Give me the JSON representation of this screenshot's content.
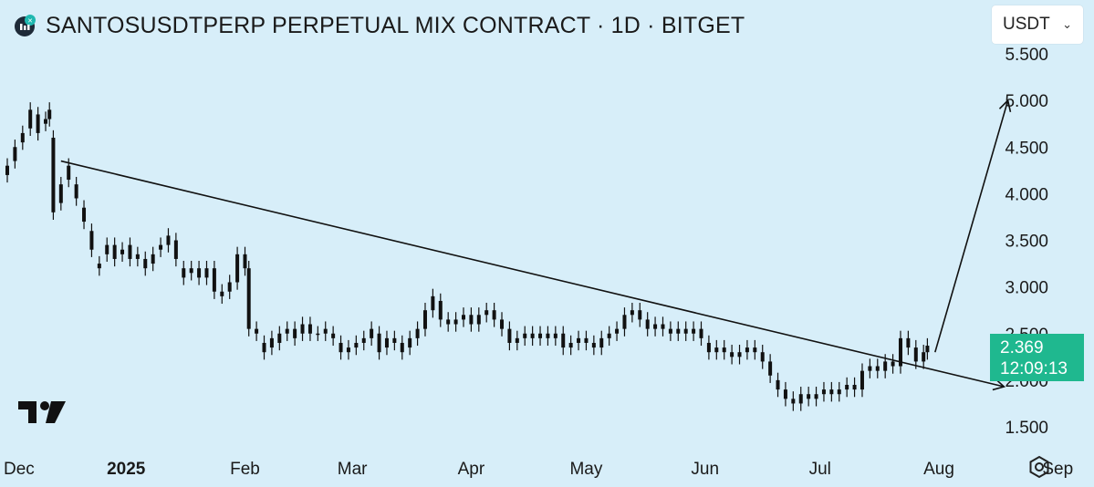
{
  "header": {
    "title": "SANTOSUSDTPERP PERPETUAL MIX CONTRACT · 1D · BITGET",
    "exchange_icon": "bitget-logo-icon"
  },
  "currency_selector": {
    "value": "USDT",
    "icon": "chevron-down-icon"
  },
  "price_label": {
    "price": "2.369",
    "countdown": "12:09:13",
    "color": "#1fb88f"
  },
  "colors": {
    "background": "#d7eef9",
    "candles": "#111111",
    "trendline": "#111111"
  },
  "chart_data": {
    "type": "candlestick",
    "y_axis": {
      "ticks": [
        "1.500",
        "2.000",
        "2.500",
        "3.000",
        "3.500",
        "4.000",
        "4.500",
        "5.000",
        "5.500"
      ],
      "values": [
        1.5,
        2.0,
        2.5,
        3.0,
        3.5,
        4.0,
        4.5,
        5.0,
        5.5
      ],
      "range": [
        1.25,
        5.75
      ]
    },
    "x_axis": {
      "tick_labels": [
        "Dec",
        "2025",
        "Feb",
        "Mar",
        "Apr",
        "May",
        "Jun",
        "Jul",
        "Aug",
        "Sep"
      ],
      "tick_dates": [
        "2024-12-01",
        "2025-01-01",
        "2025-02-01",
        "2025-03-01",
        "2025-04-01",
        "2025-05-01",
        "2025-06-01",
        "2025-07-01",
        "2025-08-01",
        "2025-09-01"
      ],
      "bold": [
        "2025"
      ],
      "range": [
        "2024-12-01",
        "2025-09-13"
      ]
    },
    "candles": [
      [
        "2024-12-01",
        4.3,
        4.2
      ],
      [
        "2024-12-03",
        4.35,
        4.5
      ],
      [
        "2024-12-05",
        4.55,
        4.65
      ],
      [
        "2024-12-07",
        4.7,
        4.9
      ],
      [
        "2024-12-09",
        4.85,
        4.65
      ],
      [
        "2024-12-11",
        4.75,
        4.8
      ],
      [
        "2024-12-12",
        4.8,
        4.9
      ],
      [
        "2024-12-13",
        4.6,
        3.8
      ],
      [
        "2024-12-15",
        3.9,
        4.1
      ],
      [
        "2024-12-17",
        4.15,
        4.3
      ],
      [
        "2024-12-19",
        4.1,
        3.95
      ],
      [
        "2024-12-21",
        3.85,
        3.7
      ],
      [
        "2024-12-23",
        3.6,
        3.4
      ],
      [
        "2024-12-25",
        3.25,
        3.2
      ],
      [
        "2024-12-27",
        3.35,
        3.45
      ],
      [
        "2024-12-29",
        3.45,
        3.3
      ],
      [
        "2024-12-31",
        3.35,
        3.4
      ],
      [
        "2025-01-02",
        3.45,
        3.3
      ],
      [
        "2025-01-04",
        3.3,
        3.35
      ],
      [
        "2025-01-06",
        3.3,
        3.2
      ],
      [
        "2025-01-08",
        3.25,
        3.35
      ],
      [
        "2025-01-10",
        3.4,
        3.45
      ],
      [
        "2025-01-12",
        3.45,
        3.55
      ],
      [
        "2025-01-14",
        3.5,
        3.3
      ],
      [
        "2025-01-16",
        3.2,
        3.1
      ],
      [
        "2025-01-18",
        3.15,
        3.2
      ],
      [
        "2025-01-20",
        3.2,
        3.1
      ],
      [
        "2025-01-22",
        3.1,
        3.2
      ],
      [
        "2025-01-24",
        3.2,
        2.95
      ],
      [
        "2025-01-26",
        2.9,
        2.95
      ],
      [
        "2025-01-28",
        2.95,
        3.05
      ],
      [
        "2025-01-30",
        3.05,
        3.35
      ],
      [
        "2025-02-01",
        3.35,
        3.2
      ],
      [
        "2025-02-02",
        3.2,
        2.55
      ],
      [
        "2025-02-04",
        2.55,
        2.5
      ],
      [
        "2025-02-06",
        2.4,
        2.3
      ],
      [
        "2025-02-08",
        2.35,
        2.45
      ],
      [
        "2025-02-10",
        2.4,
        2.5
      ],
      [
        "2025-02-12",
        2.5,
        2.55
      ],
      [
        "2025-02-14",
        2.55,
        2.45
      ],
      [
        "2025-02-16",
        2.5,
        2.6
      ],
      [
        "2025-02-18",
        2.6,
        2.5
      ],
      [
        "2025-02-20",
        2.5,
        2.5
      ],
      [
        "2025-02-22",
        2.55,
        2.5
      ],
      [
        "2025-02-24",
        2.5,
        2.45
      ],
      [
        "2025-02-26",
        2.4,
        2.3
      ],
      [
        "2025-02-28",
        2.3,
        2.35
      ],
      [
        "2025-03-02",
        2.35,
        2.4
      ],
      [
        "2025-03-04",
        2.4,
        2.45
      ],
      [
        "2025-03-06",
        2.45,
        2.55
      ],
      [
        "2025-03-08",
        2.5,
        2.3
      ],
      [
        "2025-03-10",
        2.35,
        2.45
      ],
      [
        "2025-03-12",
        2.45,
        2.4
      ],
      [
        "2025-03-14",
        2.4,
        2.3
      ],
      [
        "2025-03-16",
        2.35,
        2.45
      ],
      [
        "2025-03-18",
        2.45,
        2.55
      ],
      [
        "2025-03-20",
        2.55,
        2.75
      ],
      [
        "2025-03-22",
        2.75,
        2.9
      ],
      [
        "2025-03-24",
        2.85,
        2.65
      ],
      [
        "2025-03-26",
        2.65,
        2.6
      ],
      [
        "2025-03-28",
        2.6,
        2.65
      ],
      [
        "2025-03-30",
        2.65,
        2.7
      ],
      [
        "2025-04-01",
        2.7,
        2.6
      ],
      [
        "2025-04-03",
        2.6,
        2.7
      ],
      [
        "2025-04-05",
        2.7,
        2.75
      ],
      [
        "2025-04-07",
        2.75,
        2.65
      ],
      [
        "2025-04-09",
        2.65,
        2.55
      ],
      [
        "2025-04-11",
        2.55,
        2.4
      ],
      [
        "2025-04-13",
        2.4,
        2.45
      ],
      [
        "2025-04-15",
        2.45,
        2.5
      ],
      [
        "2025-04-17",
        2.5,
        2.45
      ],
      [
        "2025-04-19",
        2.45,
        2.5
      ],
      [
        "2025-04-21",
        2.5,
        2.45
      ],
      [
        "2025-04-23",
        2.45,
        2.5
      ],
      [
        "2025-04-25",
        2.5,
        2.35
      ],
      [
        "2025-04-27",
        2.35,
        2.4
      ],
      [
        "2025-04-29",
        2.4,
        2.45
      ],
      [
        "2025-05-01",
        2.45,
        2.4
      ],
      [
        "2025-05-03",
        2.4,
        2.35
      ],
      [
        "2025-05-05",
        2.35,
        2.45
      ],
      [
        "2025-05-07",
        2.45,
        2.5
      ],
      [
        "2025-05-09",
        2.5,
        2.55
      ],
      [
        "2025-05-11",
        2.55,
        2.7
      ],
      [
        "2025-05-13",
        2.7,
        2.75
      ],
      [
        "2025-05-15",
        2.75,
        2.65
      ],
      [
        "2025-05-17",
        2.65,
        2.55
      ],
      [
        "2025-05-19",
        2.55,
        2.6
      ],
      [
        "2025-05-21",
        2.6,
        2.55
      ],
      [
        "2025-05-23",
        2.55,
        2.5
      ],
      [
        "2025-05-25",
        2.5,
        2.55
      ],
      [
        "2025-05-27",
        2.55,
        2.5
      ],
      [
        "2025-05-29",
        2.5,
        2.55
      ],
      [
        "2025-05-31",
        2.55,
        2.45
      ],
      [
        "2025-06-02",
        2.4,
        2.3
      ],
      [
        "2025-06-04",
        2.3,
        2.35
      ],
      [
        "2025-06-06",
        2.35,
        2.3
      ],
      [
        "2025-06-08",
        2.3,
        2.25
      ],
      [
        "2025-06-10",
        2.25,
        2.3
      ],
      [
        "2025-06-12",
        2.3,
        2.35
      ],
      [
        "2025-06-14",
        2.35,
        2.3
      ],
      [
        "2025-06-16",
        2.3,
        2.2
      ],
      [
        "2025-06-18",
        2.2,
        2.05
      ],
      [
        "2025-06-20",
        2.0,
        1.9
      ],
      [
        "2025-06-22",
        1.9,
        1.8
      ],
      [
        "2025-06-24",
        1.8,
        1.75
      ],
      [
        "2025-06-26",
        1.75,
        1.85
      ],
      [
        "2025-06-28",
        1.85,
        1.8
      ],
      [
        "2025-06-30",
        1.8,
        1.85
      ],
      [
        "2025-07-02",
        1.85,
        1.9
      ],
      [
        "2025-07-04",
        1.9,
        1.85
      ],
      [
        "2025-07-06",
        1.85,
        1.9
      ],
      [
        "2025-07-08",
        1.9,
        1.95
      ],
      [
        "2025-07-10",
        1.95,
        1.9
      ],
      [
        "2025-07-12",
        1.9,
        2.1
      ],
      [
        "2025-07-14",
        2.1,
        2.15
      ],
      [
        "2025-07-16",
        2.15,
        2.1
      ],
      [
        "2025-07-18",
        2.1,
        2.2
      ],
      [
        "2025-07-20",
        2.2,
        2.15
      ],
      [
        "2025-07-22",
        2.15,
        2.45
      ],
      [
        "2025-07-24",
        2.45,
        2.35
      ],
      [
        "2025-07-26",
        2.35,
        2.2
      ],
      [
        "2025-07-28",
        2.2,
        2.3
      ],
      [
        "2025-07-29",
        2.3,
        2.37
      ]
    ],
    "trendline": {
      "start": [
        "2024-12-15",
        4.35
      ],
      "end": [
        "2025-08-18",
        1.93
      ],
      "arrow": "end"
    },
    "projection": {
      "start": [
        "2025-07-31",
        2.3
      ],
      "end": [
        "2025-08-19",
        5.0
      ],
      "arrow": "end"
    }
  }
}
